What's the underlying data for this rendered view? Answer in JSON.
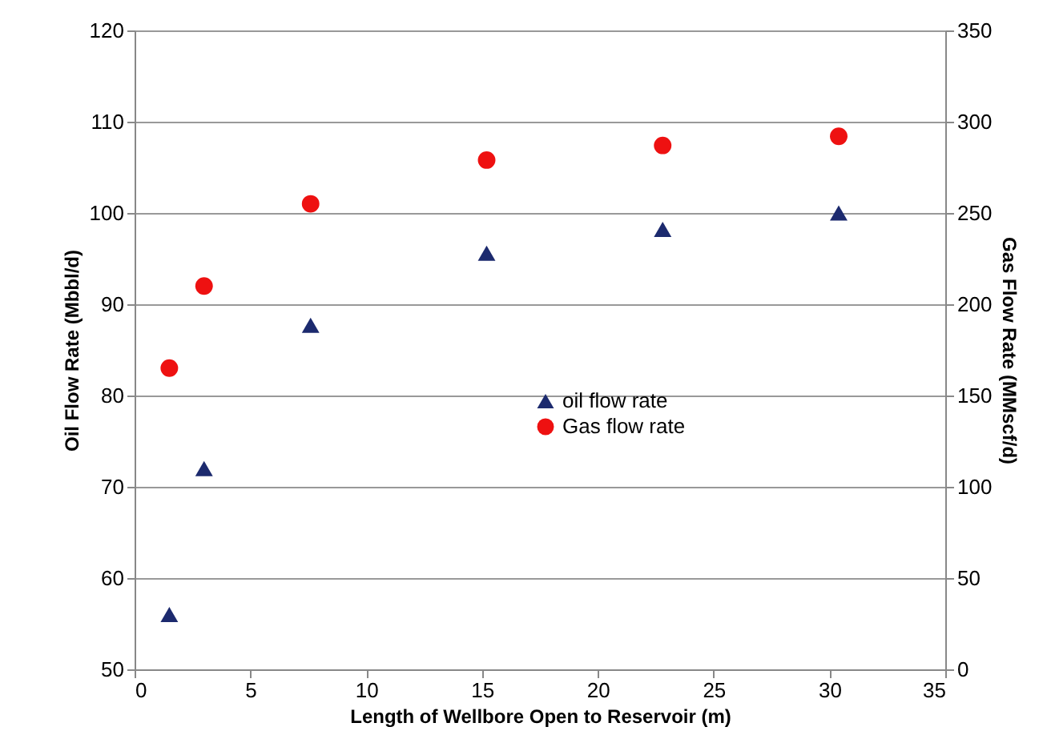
{
  "chart_data": {
    "type": "scatter",
    "xlabel": "Length of Wellbore Open to Reservoir (m)",
    "ylabel": "Oil Flow Rate (Mbbl/d)",
    "y2label": "Gas Flow Rate (MMscf/d)",
    "x": [
      1.5,
      3.0,
      7.6,
      15.2,
      22.8,
      30.4
    ],
    "series": [
      {
        "name": "oil flow rate",
        "color": "#1c2a6e",
        "marker": "triangle",
        "values": [
          56,
          72,
          87.7,
          95.6,
          98.2,
          100
        ]
      },
      {
        "name": "Gas flow rate",
        "color": "#ee1111",
        "marker": "circle",
        "axis": "y2",
        "values": [
          165,
          210,
          255,
          279,
          287,
          292
        ]
      }
    ],
    "xlim": [
      0,
      35
    ],
    "xticks": [
      0,
      5,
      10,
      15,
      20,
      25,
      30,
      35
    ],
    "ylim": [
      50,
      120
    ],
    "yticks": [
      50,
      60,
      70,
      80,
      90,
      100,
      110,
      120
    ],
    "y2lim": [
      0,
      350
    ],
    "y2ticks": [
      0,
      50,
      100,
      150,
      200,
      250,
      300,
      350
    ],
    "grid": "y",
    "legend": "right"
  }
}
